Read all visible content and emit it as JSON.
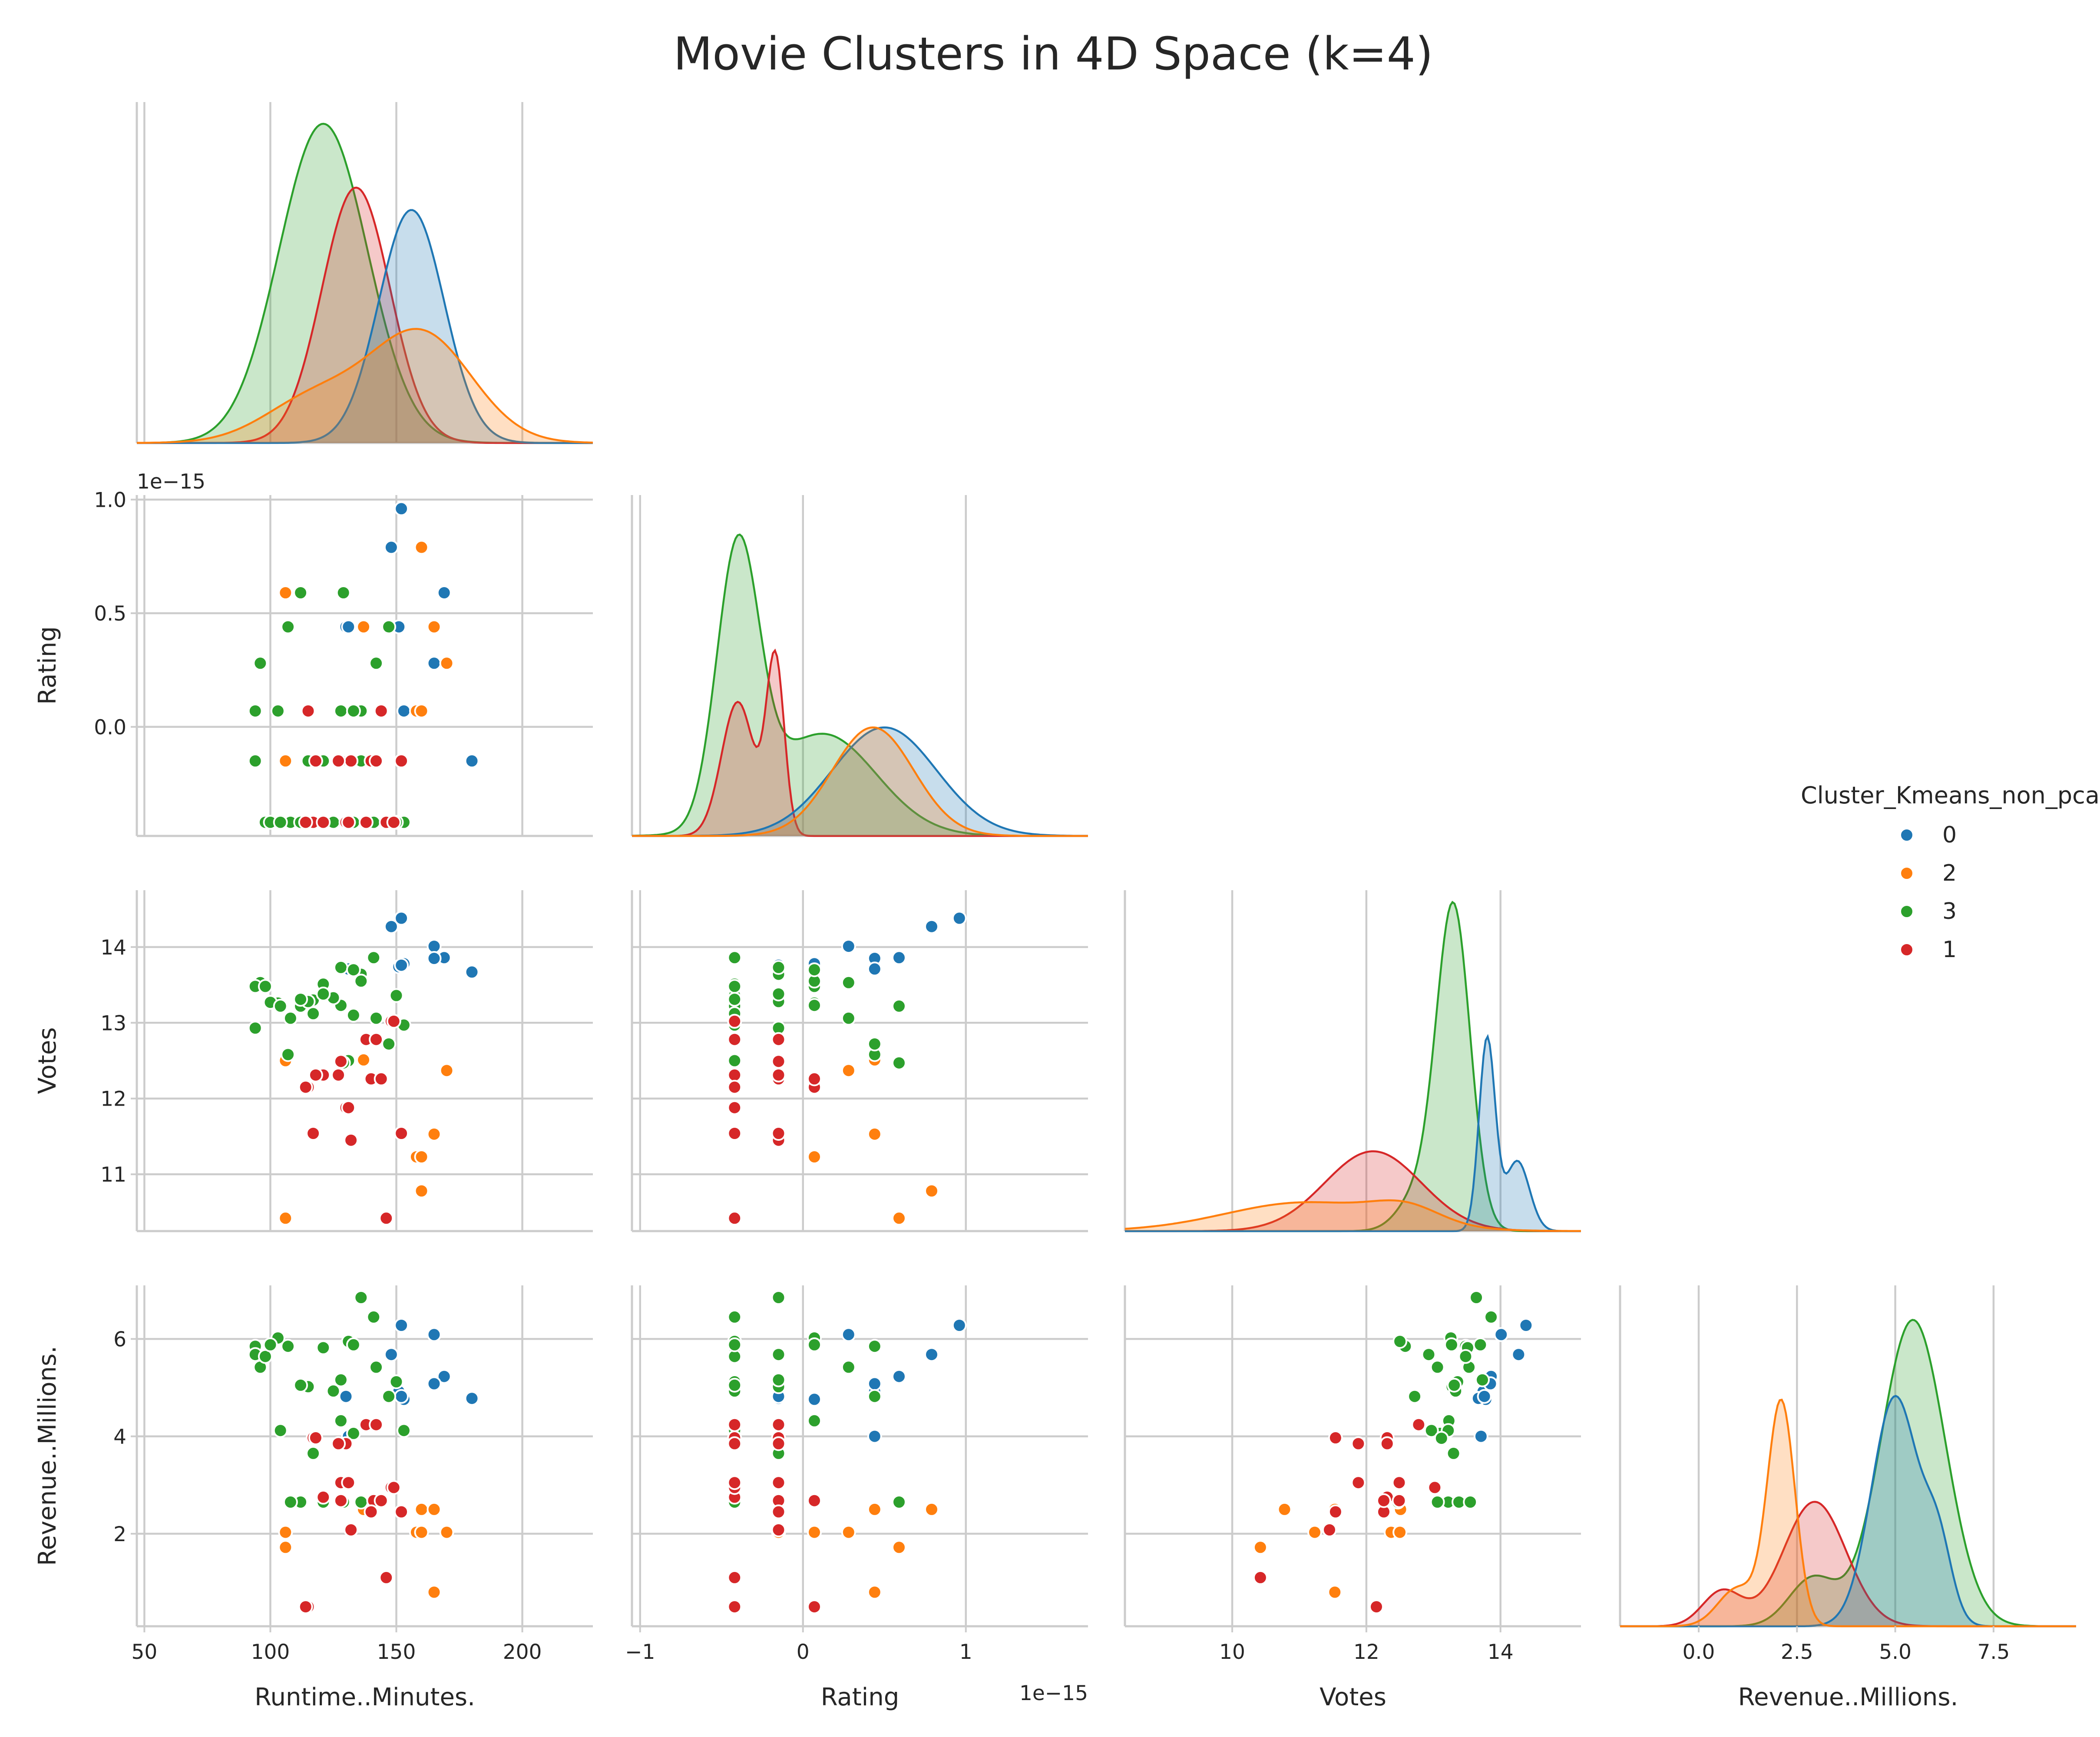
{
  "chart_data": {
    "type": "scatter",
    "title": "Movie Clusters in 4D Space (k=4)",
    "subtype": "pairplot-corner",
    "variables": [
      "Runtime..Minutes.",
      "Rating",
      "Votes",
      "Revenue..Millions."
    ],
    "axis_ranges": {
      "Runtime..Minutes.": [
        47,
        228
      ],
      "Rating": [
        -1.05,
        1.75
      ],
      "Votes": [
        8.4,
        15.2
      ],
      "Revenue..Millions.": [
        -2.0,
        9.6
      ],
      "Rating_y": [
        -0.48,
        1.02
      ],
      "Votes_y": [
        10.25,
        14.75
      ],
      "Revenue..Millions._y": [
        0.1,
        7.1
      ]
    },
    "ticks": {
      "Runtime..Minutes.": [
        50,
        100,
        150,
        200
      ],
      "Rating": [
        -1,
        0,
        1
      ],
      "Votes": [
        10,
        12,
        14
      ],
      "Revenue..Millions.": [
        0.0,
        2.5,
        5.0,
        7.5
      ],
      "Rating_y": [
        0.0,
        0.5,
        1.0
      ],
      "Votes_y": [
        11,
        12,
        13,
        14
      ],
      "Revenue..Millions._y": [
        2,
        4,
        6
      ]
    },
    "tick_labels": {
      "Runtime..Minutes.": [
        "50",
        "100",
        "150",
        "200"
      ],
      "Rating": [
        "−1",
        "0",
        "1"
      ],
      "Votes": [
        "10",
        "12",
        "14"
      ],
      "Revenue..Millions.": [
        "0.0",
        "2.5",
        "5.0",
        "7.5"
      ],
      "Rating_y": [
        "0.0",
        "0.5",
        "1.0"
      ],
      "Votes_y": [
        "11",
        "12",
        "13",
        "14"
      ],
      "Revenue..Millions._y": [
        "2",
        "4",
        "6"
      ]
    },
    "axis_offset_text": "1e−15",
    "legend": {
      "title": "Cluster_Kmeans_non_pca",
      "position": "center-right",
      "entries": [
        {
          "label": "0",
          "color": "#1f77b4"
        },
        {
          "label": "2",
          "color": "#ff7f0e"
        },
        {
          "label": "3",
          "color": "#2ca02c"
        },
        {
          "label": "1",
          "color": "#d62728"
        }
      ]
    },
    "series": [
      {
        "name": "0",
        "color": "#1f77b4",
        "runtime": [
          152,
          148,
          169,
          130,
          151,
          165,
          153,
          180,
          165,
          152,
          131
        ],
        "rating": [
          0.96,
          0.79,
          0.59,
          0.44,
          0.44,
          0.28,
          0.07,
          -0.15,
          0.44,
          -0.15,
          0.44
        ],
        "votes": [
          14.38,
          14.27,
          13.86,
          13.71,
          13.74,
          14.01,
          13.78,
          13.67,
          13.85,
          13.76,
          13.71
        ],
        "revenue": [
          6.28,
          5.68,
          5.23,
          4.82,
          4.92,
          6.09,
          4.76,
          4.78,
          5.08,
          4.82,
          4.0
        ]
      },
      {
        "name": "2",
        "color": "#ff7f0e",
        "runtime": [
          160,
          106,
          165,
          137,
          158,
          170,
          165,
          106,
          160
        ],
        "rating": [
          0.79,
          0.59,
          0.44,
          0.44,
          0.07,
          0.28,
          0.44,
          -0.15,
          0.07
        ],
        "votes": [
          10.78,
          10.42,
          11.53,
          12.51,
          11.23,
          12.37,
          11.53,
          12.5,
          11.23
        ],
        "revenue": [
          2.5,
          1.72,
          0.8,
          2.5,
          2.03,
          2.03,
          2.5,
          2.03,
          2.03
        ]
      },
      {
        "name": "3",
        "color": "#2ca02c",
        "runtime": [
          112,
          107,
          96,
          94,
          103,
          128,
          94,
          117,
          115,
          136,
          121,
          125,
          133,
          108,
          153,
          131,
          141,
          150,
          98,
          100,
          104,
          112,
          117,
          121,
          128,
          136,
          142,
          147,
          129,
          133
        ],
        "rating": [
          0.59,
          0.44,
          0.28,
          0.07,
          0.07,
          0.07,
          -0.15,
          -0.15,
          -0.15,
          -0.15,
          -0.42,
          -0.42,
          -0.42,
          -0.42,
          -0.42,
          -0.42,
          -0.42,
          -0.42,
          -0.42,
          -0.42,
          -0.42,
          -0.42,
          -0.42,
          -0.15,
          -0.15,
          0.07,
          0.28,
          0.44,
          0.59,
          0.07
        ],
        "votes": [
          13.22,
          12.58,
          13.53,
          13.48,
          13.26,
          13.23,
          12.93,
          13.3,
          13.28,
          13.64,
          13.51,
          13.33,
          13.1,
          13.06,
          12.97,
          12.5,
          13.86,
          13.36,
          13.48,
          13.27,
          13.22,
          13.31,
          13.12,
          13.38,
          13.73,
          13.55,
          13.06,
          12.72,
          12.47,
          13.7
        ],
        "revenue": [
          2.65,
          5.85,
          5.42,
          5.85,
          6.02,
          4.32,
          5.68,
          3.65,
          5.02,
          6.85,
          5.82,
          4.93,
          4.06,
          2.65,
          4.12,
          5.95,
          6.45,
          5.12,
          5.64,
          5.88,
          4.12,
          5.05,
          3.96,
          2.65,
          5.16,
          2.65,
          5.42,
          4.82,
          2.65,
          5.88
        ]
      },
      {
        "name": "1",
        "color": "#d62728",
        "runtime": [
          115,
          128,
          132,
          141,
          152,
          117,
          121,
          130,
          138,
          148,
          146,
          140,
          128,
          118,
          132,
          152,
          142,
          149,
          131,
          114,
          144,
          127
        ],
        "rating": [
          0.07,
          -0.15,
          -0.15,
          -0.15,
          -0.15,
          -0.42,
          -0.42,
          -0.42,
          -0.42,
          -0.42,
          -0.42,
          -0.15,
          -0.15,
          -0.15,
          -0.15,
          -0.15,
          -0.15,
          -0.42,
          -0.42,
          -0.42,
          0.07,
          -0.15
        ],
        "votes": [
          12.15,
          12.49,
          11.45,
          12.26,
          11.54,
          11.54,
          12.31,
          11.88,
          12.78,
          13.02,
          10.42,
          12.26,
          12.49,
          12.31,
          11.45,
          11.54,
          12.78,
          13.02,
          11.88,
          12.15,
          12.26,
          12.31
        ],
        "revenue": [
          0.5,
          3.05,
          2.08,
          2.68,
          2.45,
          3.97,
          2.75,
          3.85,
          4.24,
          2.95,
          1.1,
          2.45,
          2.68,
          3.97,
          2.08,
          2.45,
          4.24,
          2.95,
          3.05,
          0.5,
          2.68,
          3.85
        ]
      }
    ],
    "kde": {
      "Runtime..Minutes.": {
        "0": {
          "mean": 156,
          "sd": 13,
          "weight": 0.73
        },
        "2": {
          "mean": 160,
          "sd": 20,
          "weight": 0.34,
          "tail": {
            "mean": 118,
            "sd": 20,
            "weight": 0.14
          }
        },
        "3": {
          "mean": 121,
          "sd": 17.5,
          "weight": 1.0
        },
        "1": {
          "mean": 134,
          "sd": 13.5,
          "weight": 0.8
        }
      },
      "Rating": {
        "0": {
          "mean": 0.5,
          "sd": 0.32,
          "weight": 0.34
        },
        "2": {
          "mean": 0.43,
          "sd": 0.25,
          "weight": 0.34
        },
        "3": {
          "mean": -0.4,
          "sd": 0.13,
          "weight": 0.85,
          "tail": {
            "mean": 0.12,
            "sd": 0.33,
            "weight": 0.32
          }
        },
        "1": {
          "mean": -0.17,
          "sd": 0.055,
          "weight": 0.55,
          "tail": {
            "mean": -0.4,
            "sd": 0.1,
            "weight": 0.42
          }
        }
      },
      "Votes": {
        "0": {
          "mean": 13.8,
          "sd": 0.12,
          "weight": 0.6,
          "tail": {
            "mean": 14.25,
            "sd": 0.18,
            "weight": 0.22
          }
        },
        "2": {
          "mean": 11.1,
          "sd": 1.2,
          "weight": 0.09,
          "tail": {
            "mean": 12.6,
            "sd": 0.5,
            "weight": 0.05
          }
        },
        "3": {
          "mean": 13.3,
          "sd": 0.25,
          "weight": 1.0,
          "tail": {
            "mean": 12.8,
            "sd": 0.3,
            "weight": 0.12
          }
        },
        "1": {
          "mean": 12.1,
          "sd": 0.72,
          "weight": 0.25
        }
      },
      "Revenue..Millions.": {
        "0": {
          "mean": 5.0,
          "sd": 0.6,
          "weight": 0.72,
          "tail": {
            "mean": 6.1,
            "sd": 0.35,
            "weight": 0.22
          }
        },
        "2": {
          "mean": 2.1,
          "sd": 0.35,
          "weight": 0.7,
          "tail": {
            "mean": 1.0,
            "sd": 0.5,
            "weight": 0.12
          }
        },
        "3": {
          "mean": 5.45,
          "sd": 0.82,
          "weight": 0.96,
          "tail": {
            "mean": 2.9,
            "sd": 0.6,
            "weight": 0.15
          }
        },
        "1": {
          "mean": 2.95,
          "sd": 0.8,
          "weight": 0.39,
          "tail": {
            "mean": 0.6,
            "sd": 0.5,
            "weight": 0.11
          }
        }
      }
    }
  }
}
